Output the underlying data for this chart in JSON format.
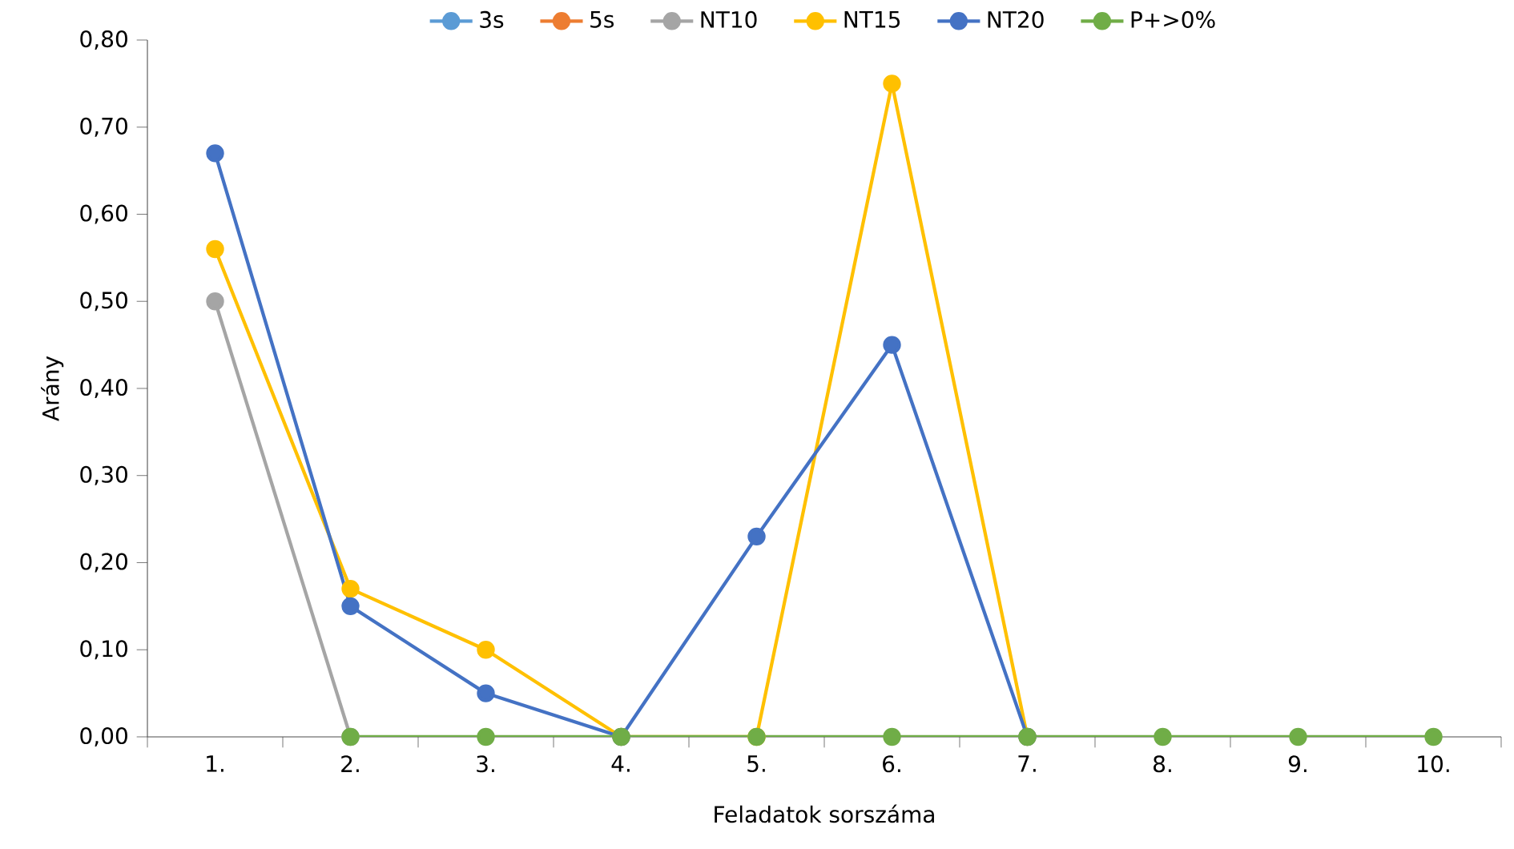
{
  "chart_data": {
    "type": "line",
    "xlabel": "Feladatok sorszáma",
    "ylabel": "Arány",
    "categories": [
      "1.",
      "2.",
      "3.",
      "4.",
      "5.",
      "6.",
      "7.",
      "8.",
      "9.",
      "10."
    ],
    "ylim": [
      0,
      0.8
    ],
    "yticks": [
      {
        "value": 0,
        "label": "0,00"
      },
      {
        "value": 0.1,
        "label": "0,10"
      },
      {
        "value": 0.2,
        "label": "0,20"
      },
      {
        "value": 0.3,
        "label": "0,30"
      },
      {
        "value": 0.4,
        "label": "0,40"
      },
      {
        "value": 0.5,
        "label": "0,50"
      },
      {
        "value": 0.6,
        "label": "0,60"
      },
      {
        "value": 0.7,
        "label": "0,70"
      },
      {
        "value": 0.8,
        "label": "0,80"
      }
    ],
    "grid": false,
    "legend": "top",
    "marker": "circle",
    "line_style": "solid",
    "series": [
      {
        "name": "3s",
        "color": "#5b9bd5",
        "values": [
          null,
          null,
          null,
          null,
          null,
          null,
          null,
          null,
          null,
          null
        ]
      },
      {
        "name": "5s",
        "color": "#ed7d31",
        "values": [
          null,
          null,
          null,
          null,
          null,
          null,
          null,
          null,
          null,
          null
        ]
      },
      {
        "name": "NT10",
        "color": "#a5a5a5",
        "values": [
          0.5,
          0,
          null,
          null,
          null,
          null,
          null,
          null,
          null,
          null
        ]
      },
      {
        "name": "NT15",
        "color": "#ffc000",
        "values": [
          0.56,
          0.17,
          0.1,
          0,
          0,
          0.75,
          0,
          null,
          null,
          null
        ]
      },
      {
        "name": "NT20",
        "color": "#4472c4",
        "values": [
          0.67,
          0.15,
          0.05,
          0,
          0.23,
          0.45,
          0,
          null,
          null,
          null
        ]
      },
      {
        "name": "P+>0%",
        "color": "#70ad47",
        "values": [
          null,
          0,
          0,
          0,
          0,
          0,
          0,
          0,
          0,
          0
        ]
      }
    ]
  }
}
